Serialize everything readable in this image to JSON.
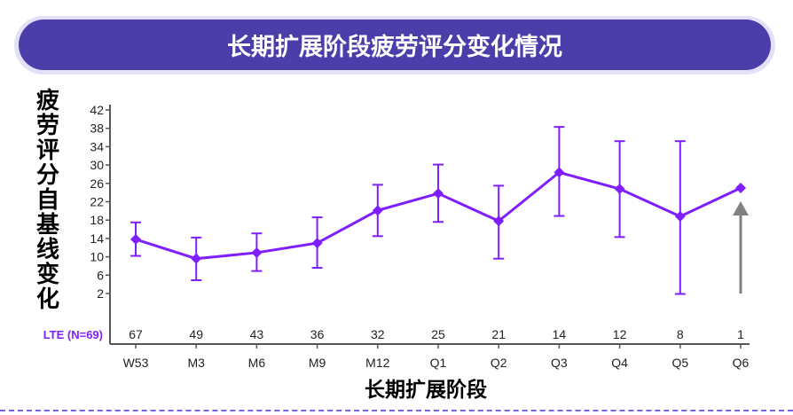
{
  "header": {
    "title": "长期扩展阶段疲劳评分变化情况"
  },
  "colors": {
    "banner": "#4b3eaa",
    "banner_border": "#e4e0f7",
    "series": "#7f1fff",
    "arrow": "#808080",
    "dash": "#7b62e0"
  },
  "chart_data": {
    "type": "line",
    "title": "长期扩展阶段疲劳评分变化情况",
    "xlabel": "长期扩展阶段",
    "ylabel": "疲劳评分自基线变化",
    "ylim": [
      0,
      43
    ],
    "yticks": [
      2,
      6,
      10,
      14,
      18,
      22,
      26,
      30,
      34,
      38,
      42
    ],
    "grid": false,
    "categories": [
      "W53",
      "M3",
      "M6",
      "M9",
      "M12",
      "Q1",
      "Q2",
      "Q3",
      "Q4",
      "Q5",
      "Q6"
    ],
    "series": [
      {
        "name": "LTE (N=69)",
        "values": [
          13.8,
          9.6,
          10.9,
          13.0,
          20.1,
          23.8,
          17.8,
          28.4,
          24.8,
          18.8,
          25.0
        ],
        "error_low": [
          10.2,
          4.9,
          6.9,
          7.6,
          14.5,
          17.6,
          9.6,
          18.9,
          14.3,
          1.9,
          null
        ],
        "error_high": [
          17.5,
          14.2,
          15.1,
          18.6,
          25.7,
          30.1,
          25.5,
          38.3,
          35.2,
          35.2,
          null
        ]
      }
    ],
    "n_at_risk": {
      "label": "LTE (N=69)",
      "values": [
        "67",
        "49",
        "43",
        "36",
        "32",
        "25",
        "21",
        "14",
        "12",
        "8",
        "1"
      ]
    },
    "annotations": [
      {
        "type": "arrow",
        "category": "Q6",
        "direction": "up",
        "color": "#808080"
      }
    ]
  },
  "ylabel_chars": [
    "疲",
    "劳",
    "评",
    "分",
    "自",
    "基",
    "线",
    "变",
    "化"
  ]
}
